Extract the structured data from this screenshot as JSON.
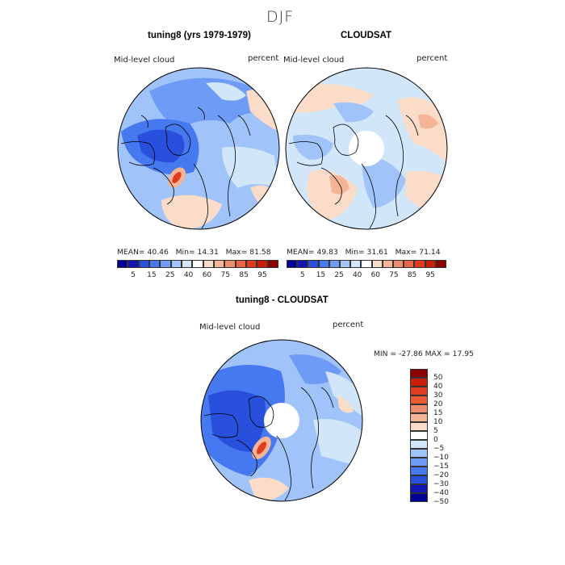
{
  "season": "DJF",
  "panel_left": {
    "title": "tuning8 (yrs 1979-1979)",
    "variable": "Mid-level cloud",
    "units": "percent",
    "stats": {
      "mean_label": "MEAN=",
      "mean": "40.46",
      "min_label": "Min=",
      "min": "14.31",
      "max_label": "Max=",
      "max": "81.58"
    }
  },
  "panel_right": {
    "title": "CLOUDSAT",
    "variable": "Mid-level cloud",
    "units": "percent",
    "stats": {
      "mean_label": "MEAN=",
      "mean": "49.83",
      "min_label": "Min=",
      "min": "31.61",
      "max_label": "Max=",
      "max": "71.14"
    }
  },
  "shared_colorbar": {
    "tick_labels": [
      "5",
      "15",
      "25",
      "40",
      "60",
      "75",
      "85",
      "95"
    ],
    "colors": [
      "#000096",
      "#1414b4",
      "#2850dc",
      "#4678f0",
      "#6e9bf5",
      "#a0c3fa",
      "#d2e6fa",
      "#ffffff",
      "#fadcc8",
      "#f5b496",
      "#f08c6e",
      "#eb6446",
      "#e13c1e",
      "#c81e0a",
      "#8c0000"
    ]
  },
  "panel_diff": {
    "title": "tuning8 - CLOUDSAT",
    "variable": "Mid-level cloud",
    "units": "percent",
    "minmax": {
      "min_label": "MIN =",
      "min": "-27.86",
      "max_label": "MAX =",
      "max": "17.95"
    }
  },
  "diff_colorbar": {
    "tick_labels": [
      "50",
      "40",
      "30",
      "20",
      "15",
      "10",
      "5",
      "0",
      "−5",
      "−10",
      "−15",
      "−20",
      "−30",
      "−40",
      "−50"
    ],
    "colors": [
      "#8c0000",
      "#c81e0a",
      "#e13c1e",
      "#eb5a32",
      "#f08c6e",
      "#f5b496",
      "#fadcc8",
      "#ffffff",
      "#d2e6fa",
      "#a0c3fa",
      "#6e9bf5",
      "#4678f0",
      "#2850dc",
      "#1414b4",
      "#000096"
    ]
  },
  "map_colors": {
    "deep_blue": "#1e50e6",
    "mid_blue": "#6e9bf5",
    "light_blue": "#a0c3fa",
    "pale_blue": "#d2e6fa",
    "pale_red": "#fadcc8",
    "light_red": "#f5b496",
    "red": "#e13c1e",
    "missing": "#ffffff",
    "coast": "#000000"
  }
}
